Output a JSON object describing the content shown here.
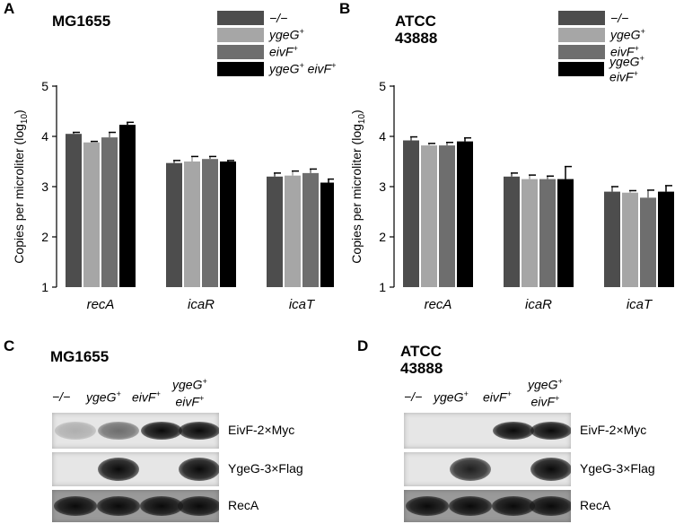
{
  "panels": {
    "A": {
      "letter": "A",
      "strain": [
        "MG1655"
      ]
    },
    "B": {
      "letter": "B",
      "strain": [
        "ATCC",
        "43888"
      ]
    },
    "C": {
      "letter": "C",
      "strain": [
        "MG1655"
      ]
    },
    "D": {
      "letter": "D",
      "strain": [
        "ATCC",
        "43888"
      ]
    }
  },
  "legend": [
    {
      "base": "−/−",
      "sup": "",
      "base2": "",
      "sup2": "",
      "color": "#4d4d4d"
    },
    {
      "base": "ygeG",
      "sup": "+",
      "base2": "",
      "sup2": "",
      "color": "#a6a6a6"
    },
    {
      "base": "eivF",
      "sup": "+",
      "base2": "",
      "sup2": "",
      "color": "#6e6e6e"
    },
    {
      "base": "ygeG",
      "sup": "+",
      "base2": " eivF",
      "sup2": "+",
      "color": "#000000"
    }
  ],
  "chart_data": [
    {
      "type": "bar",
      "panel": "A",
      "ylabel": "Copies per microliter (log10)",
      "ylim": [
        1,
        5
      ],
      "yticks": [
        1,
        2,
        3,
        4,
        5
      ],
      "categories": [
        "recA",
        "icaR",
        "icaT"
      ],
      "series": [
        {
          "name": "−/−",
          "color": "#4d4d4d",
          "values": [
            4.05,
            3.47,
            3.2
          ],
          "errors": [
            0.03,
            0.05,
            0.07
          ]
        },
        {
          "name": "ygeG+",
          "color": "#a6a6a6",
          "values": [
            3.88,
            3.5,
            3.22
          ],
          "errors": [
            0.02,
            0.1,
            0.09
          ]
        },
        {
          "name": "eivF+",
          "color": "#6e6e6e",
          "values": [
            3.98,
            3.55,
            3.27
          ],
          "errors": [
            0.1,
            0.05,
            0.08
          ]
        },
        {
          "name": "ygeG+ eivF+",
          "color": "#000000",
          "values": [
            4.23,
            3.5,
            3.08
          ],
          "errors": [
            0.05,
            0.02,
            0.07
          ]
        }
      ]
    },
    {
      "type": "bar",
      "panel": "B",
      "ylabel": "Copies per microliter (log10)",
      "ylim": [
        1,
        5
      ],
      "yticks": [
        1,
        2,
        3,
        4,
        5
      ],
      "categories": [
        "recA",
        "icaR",
        "icaT"
      ],
      "series": [
        {
          "name": "−/−",
          "color": "#4d4d4d",
          "values": [
            3.92,
            3.2,
            2.9
          ],
          "errors": [
            0.07,
            0.07,
            0.1
          ]
        },
        {
          "name": "ygeG+",
          "color": "#a6a6a6",
          "values": [
            3.82,
            3.15,
            2.88
          ],
          "errors": [
            0.04,
            0.08,
            0.04
          ]
        },
        {
          "name": "eivF+",
          "color": "#6e6e6e",
          "values": [
            3.82,
            3.15,
            2.78
          ],
          "errors": [
            0.06,
            0.06,
            0.15
          ]
        },
        {
          "name": "ygeG+ eivF+",
          "color": "#000000",
          "values": [
            3.9,
            3.15,
            2.9
          ],
          "errors": [
            0.07,
            0.25,
            0.12
          ]
        }
      ]
    }
  ],
  "blots": [
    {
      "panel": "C",
      "lanes": [
        {
          "base": "−/−",
          "sup": "",
          "base2": "",
          "sup2": ""
        },
        {
          "base": "ygeG",
          "sup": "+",
          "base2": "",
          "sup2": ""
        },
        {
          "base": "eivF",
          "sup": "+",
          "base2": "",
          "sup2": ""
        },
        {
          "base": "ygeG",
          "sup": "+",
          "base2": "eivF",
          "sup2": "+"
        }
      ],
      "rows": [
        {
          "label": "EivF-2×Myc",
          "intensity": [
            0.25,
            0.55,
            1.0,
            1.0
          ]
        },
        {
          "label": "YgeG-3×Flag",
          "intensity": [
            0,
            1.0,
            0,
            1.0
          ]
        },
        {
          "label": "RecA",
          "intensity": [
            1.0,
            1.0,
            1.0,
            1.0
          ]
        }
      ]
    },
    {
      "panel": "D",
      "lanes": [
        {
          "base": "−/−",
          "sup": "",
          "base2": "",
          "sup2": ""
        },
        {
          "base": "ygeG",
          "sup": "+",
          "base2": "",
          "sup2": ""
        },
        {
          "base": "eivF",
          "sup": "+",
          "base2": "",
          "sup2": ""
        },
        {
          "base": "ygeG",
          "sup": "+",
          "base2": "eivF",
          "sup2": "+"
        }
      ],
      "rows": [
        {
          "label": "EivF-2×Myc",
          "intensity": [
            0,
            0,
            1.0,
            1.0
          ]
        },
        {
          "label": "YgeG-3×Flag",
          "intensity": [
            0,
            0.9,
            0,
            1.0
          ]
        },
        {
          "label": "RecA",
          "intensity": [
            1.0,
            1.0,
            1.0,
            1.0
          ]
        }
      ]
    }
  ]
}
